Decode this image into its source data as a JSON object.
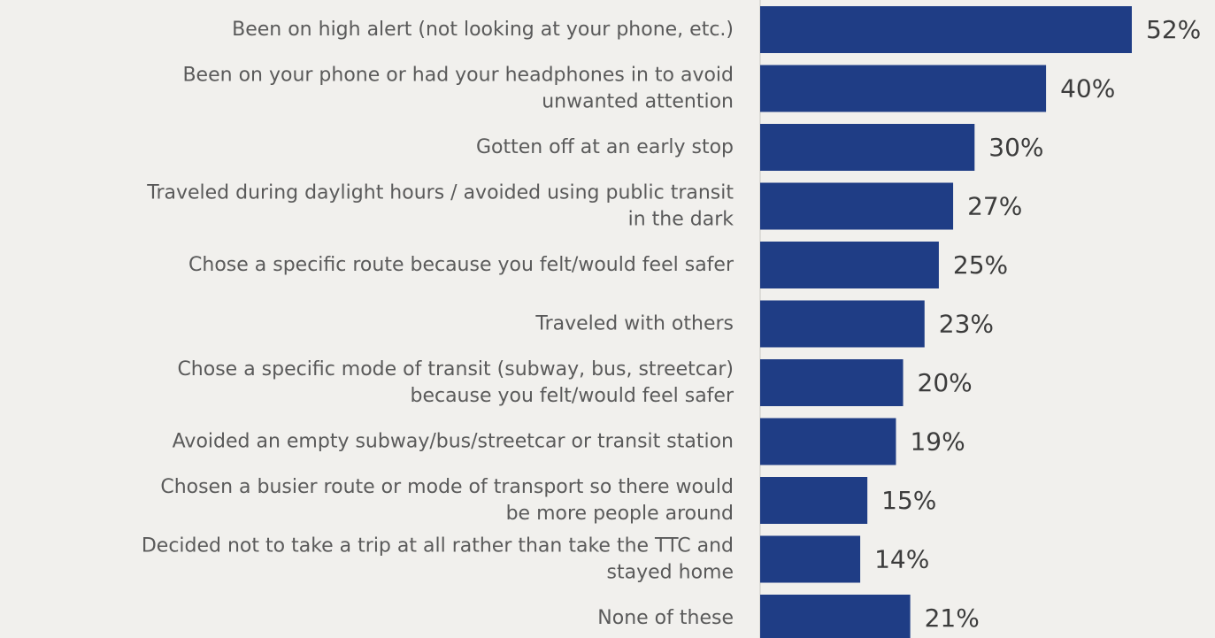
{
  "chart_data": {
    "type": "bar",
    "orientation": "horizontal",
    "categories": [
      [
        "Been on high alert (not looking at your phone, etc.)"
      ],
      [
        "Been on your phone or had your headphones in to avoid",
        "unwanted attention"
      ],
      [
        "Gotten off at an early stop"
      ],
      [
        "Traveled during daylight hours / avoided using public transit",
        "in the dark"
      ],
      [
        "Chose a specific route because you felt/would feel safer"
      ],
      [
        "Traveled with others"
      ],
      [
        "Chose a specific mode of transit (subway, bus, streetcar)",
        "because you felt/would feel safer"
      ],
      [
        "Avoided an empty subway/bus/streetcar or transit station"
      ],
      [
        "Chosen a busier route or mode of transport so there would",
        "be more people around"
      ],
      [
        "Decided not to take a trip at all rather than take the TTC and",
        "stayed home"
      ],
      [
        "None of these"
      ]
    ],
    "values": [
      52,
      40,
      30,
      27,
      25,
      23,
      20,
      19,
      15,
      14,
      21
    ],
    "value_labels": [
      "52%",
      "40%",
      "30%",
      "27%",
      "25%",
      "23%",
      "20%",
      "19%",
      "15%",
      "14%",
      "21%"
    ],
    "unit": "%",
    "xlim": [
      0,
      52
    ],
    "grid": false,
    "legend": "none",
    "colors": {
      "bar": "#1f3d85",
      "background": "#f1f0ed",
      "category_text": "#5a5a5a",
      "value_text": "#3c3c3c"
    }
  }
}
